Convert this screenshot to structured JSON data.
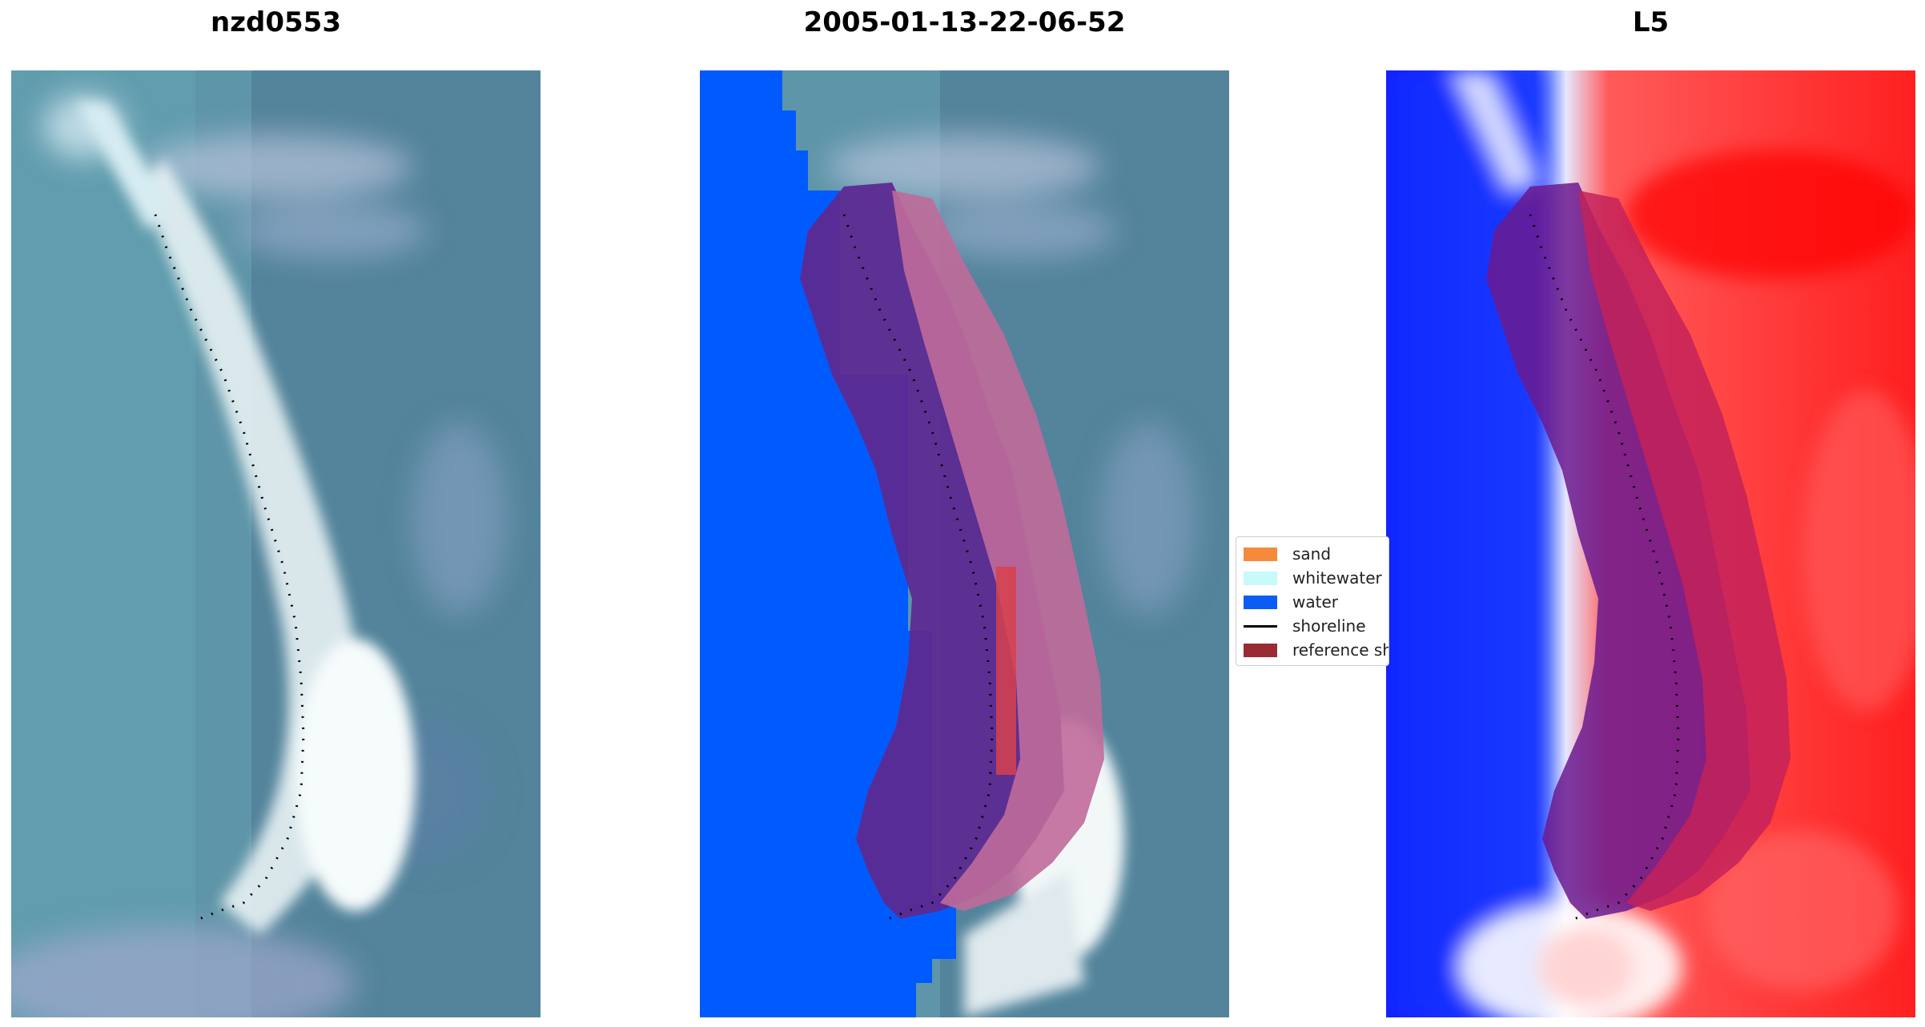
{
  "panels": [
    {
      "title": "nzd0553",
      "kind": "rgb"
    },
    {
      "title": "2005-01-13-22-06-52",
      "kind": "classified"
    },
    {
      "title": "L5",
      "kind": "index"
    }
  ],
  "legend": {
    "items": [
      {
        "label": "sand",
        "color": "#f68a3c",
        "type": "patch"
      },
      {
        "label": "whitewater",
        "color": "#c8fafa",
        "type": "patch"
      },
      {
        "label": "water",
        "color": "#0b5cf5",
        "type": "patch"
      },
      {
        "label": "shoreline",
        "color": "#000000",
        "type": "line"
      },
      {
        "label": "reference shoreline buffer",
        "color": "#9a2a33",
        "type": "patch"
      }
    ]
  },
  "colors": {
    "ocean": "#5f95a8",
    "water_class": "#005bff",
    "buffer": "#6e1f86",
    "index_positive": "#ff1a1a",
    "index_negative": "#0d1bff"
  }
}
